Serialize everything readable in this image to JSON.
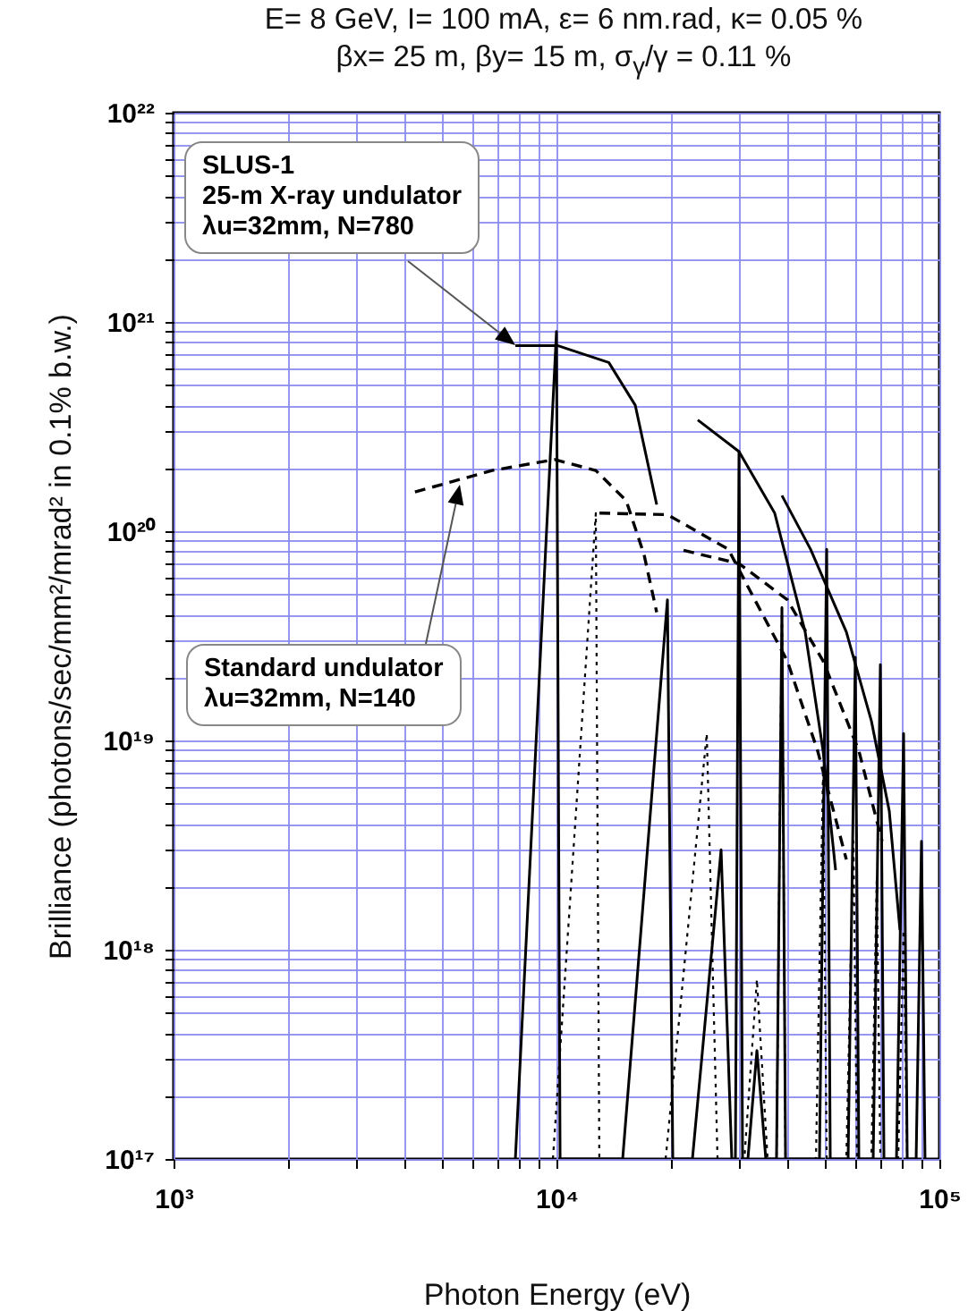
{
  "chart_data": {
    "type": "line",
    "title": "E= 8 GeV, I= 100 mA, ε= 6 nm.rad, κ= 0.05 %",
    "subtitle": "βx= 25 m, βy= 15 m, σ$_{γ}$/γ = 0.11 %",
    "xlabel": "Photon Energy (eV)",
    "ylabel": "Brilliance (photons/sec/mm²/mrad² in 0.1% b.w.)",
    "log": "xy",
    "grid": true,
    "xlim": [
      1000,
      100000
    ],
    "ylim": [
      1e+17,
      1e+22
    ],
    "xticks": [
      {
        "value": 1000,
        "label": "10³"
      },
      {
        "value": 2000,
        "label": null
      },
      {
        "value": 3000,
        "label": null
      },
      {
        "value": 4000,
        "label": null
      },
      {
        "value": 5000,
        "label": null
      },
      {
        "value": 6000,
        "label": null
      },
      {
        "value": 7000,
        "label": null
      },
      {
        "value": 8000,
        "label": null
      },
      {
        "value": 9000,
        "label": null
      },
      {
        "value": 10000,
        "label": "10⁴"
      },
      {
        "value": 20000,
        "label": null
      },
      {
        "value": 30000,
        "label": null
      },
      {
        "value": 40000,
        "label": null
      },
      {
        "value": 50000,
        "label": null
      },
      {
        "value": 60000,
        "label": null
      },
      {
        "value": 70000,
        "label": null
      },
      {
        "value": 80000,
        "label": null
      },
      {
        "value": 90000,
        "label": null
      },
      {
        "value": 100000,
        "label": "10⁵"
      }
    ],
    "yticks": [
      {
        "value": 1e+17,
        "label": "10¹⁷"
      },
      {
        "value": 2e+17,
        "label": null
      },
      {
        "value": 3e+17,
        "label": null
      },
      {
        "value": 4e+17,
        "label": null
      },
      {
        "value": 5e+17,
        "label": null
      },
      {
        "value": 6e+17,
        "label": null
      },
      {
        "value": 7e+17,
        "label": null
      },
      {
        "value": 8e+17,
        "label": null
      },
      {
        "value": 9e+17,
        "label": null
      },
      {
        "value": 1e+18,
        "label": "10¹⁸"
      },
      {
        "value": 2e+18,
        "label": null
      },
      {
        "value": 3e+18,
        "label": null
      },
      {
        "value": 4e+18,
        "label": null
      },
      {
        "value": 5e+18,
        "label": null
      },
      {
        "value": 6e+18,
        "label": null
      },
      {
        "value": 7e+18,
        "label": null
      },
      {
        "value": 8e+18,
        "label": null
      },
      {
        "value": 9e+18,
        "label": null
      },
      {
        "value": 1e+19,
        "label": "10¹⁹"
      },
      {
        "value": 2e+19,
        "label": null
      },
      {
        "value": 3e+19,
        "label": null
      },
      {
        "value": 4e+19,
        "label": null
      },
      {
        "value": 5e+19,
        "label": null
      },
      {
        "value": 6e+19,
        "label": null
      },
      {
        "value": 7e+19,
        "label": null
      },
      {
        "value": 8e+19,
        "label": null
      },
      {
        "value": 9e+19,
        "label": null
      },
      {
        "value": 1e+20,
        "label": "10²⁰"
      },
      {
        "value": 2e+20,
        "label": null
      },
      {
        "value": 3e+20,
        "label": null
      },
      {
        "value": 4e+20,
        "label": null
      },
      {
        "value": 5e+20,
        "label": null
      },
      {
        "value": 6e+20,
        "label": null
      },
      {
        "value": 7e+20,
        "label": null
      },
      {
        "value": 8e+20,
        "label": null
      },
      {
        "value": 9e+20,
        "label": null
      },
      {
        "value": 1e+21,
        "label": "10²¹"
      },
      {
        "value": 2e+21,
        "label": null
      },
      {
        "value": 3e+21,
        "label": null
      },
      {
        "value": 4e+21,
        "label": null
      },
      {
        "value": 5e+21,
        "label": null
      },
      {
        "value": 6e+21,
        "label": null
      },
      {
        "value": 7e+21,
        "label": null
      },
      {
        "value": 8e+21,
        "label": null
      },
      {
        "value": 9e+21,
        "label": null
      },
      {
        "value": 1e+22,
        "label": "10²²"
      }
    ],
    "annotations": [
      "SLUS-1\n25-m X-ray undulator\nλu=32mm, N=780",
      "Standard undulator\nλu=32mm, N=140"
    ],
    "series": [
      {
        "color": "#000000",
        "line_style": "solid",
        "x": [
          7810,
          10100,
          13700,
          16060,
          18270
        ],
        "values": [
          7.7e+20,
          7.7e+20,
          6.4e+20,
          4e+20,
          1.34e+20
        ]
      },
      {
        "color": "#000000",
        "line_style": "solid",
        "x": [
          23390,
          29980,
          37150,
          44620,
          49700,
          53580
        ],
        "values": [
          3.4e+20,
          2.4e+20,
          1.22e+20,
          3.3e+19,
          8.9e+18,
          2.4e+18
        ]
      },
      {
        "color": "#000000",
        "line_style": "solid",
        "x": [
          38800,
          46080,
          57150,
          66440,
          73990,
          78900
        ],
        "values": [
          1.48e+20,
          8.2e+19,
          3.3e+19,
          1.24e+19,
          4.6e+18,
          1.24e+18
        ]
      },
      {
        "color": "#000000",
        "line_style": "dashed",
        "x": [
          4270,
          6790,
          9890,
          12670,
          15210,
          16940,
          18270
        ],
        "values": [
          1.54e+20,
          1.95e+20,
          2.2e+20,
          1.95e+20,
          1.4e+20,
          7.7e+19,
          4.1e+19
        ]
      },
      {
        "color": "#000000",
        "line_style": "dashed",
        "x": [
          12950,
          19490,
          28100,
          33380,
          40070,
          48110,
          57150
        ],
        "values": [
          1.22e+20,
          1.2e+20,
          8.2e+19,
          4.5e+19,
          2.4e+19,
          8.9e+18,
          2.7e+18
        ]
      },
      {
        "color": "#000000",
        "line_style": "dashed",
        "x": [
          21470,
          29980,
          40070,
          49700,
          61640,
          70860
        ],
        "values": [
          8.1e+19,
          7e+19,
          4.7e+19,
          2.4e+19,
          8.9e+18,
          3.3e+18
        ]
      },
      {
        "color": "#000000",
        "line_style": "solid",
        "x": [
          7810,
          10000,
          10220,
          14890,
          19490,
          20130,
          22650,
          26910,
          28700,
          29330,
          29970,
          30620,
          31620,
          33380,
          35220,
          37560,
          38800,
          39650,
          48630,
          50780,
          51880,
          57770,
          60310,
          61620,
          67160,
          70130,
          71650,
          77270,
          80640,
          82410,
          86960,
          89800,
          91730
        ],
        "values": [
          1e+17,
          9e+20,
          1e+17,
          1e+17,
          4.7e+19,
          1e+17,
          1e+17,
          3e+18,
          1e+17,
          1e+17,
          2.4e+20,
          1e+17,
          1e+17,
          3.3e+17,
          1e+17,
          1e+17,
          4.3e+19,
          1e+17,
          1e+17,
          8.2e+19,
          1e+17,
          1e+17,
          2.5e+19,
          1e+17,
          1e+17,
          2.3e+19,
          1e+17,
          1e+17,
          1.08e+19,
          1e+17,
          1e+17,
          3.3e+18,
          1e+17
        ]
      },
      {
        "color": "#000000",
        "line_style": "dotted",
        "x": [
          9790,
          12670,
          12940,
          19280,
          24690,
          26340,
          30950,
          33380,
          35600,
          37560,
          38800,
          39650,
          47600,
          49700,
          50780,
          57150,
          59660,
          60950,
          66440,
          68620,
          70130,
          78070,
          80640,
          82410
        ],
        "values": [
          1e+17,
          1.22e+20,
          1e+17,
          1e+17,
          1.08e+19,
          1e+17,
          1e+17,
          7.2e+17,
          1e+17,
          1e+17,
          4.5e+19,
          1e+17,
          1e+17,
          7.3e+18,
          1e+17,
          1e+17,
          3.3e+18,
          1e+17,
          1e+17,
          2.2e+18,
          1e+17,
          1e+17,
          1.24e+18,
          1e+17
        ]
      }
    ]
  }
}
